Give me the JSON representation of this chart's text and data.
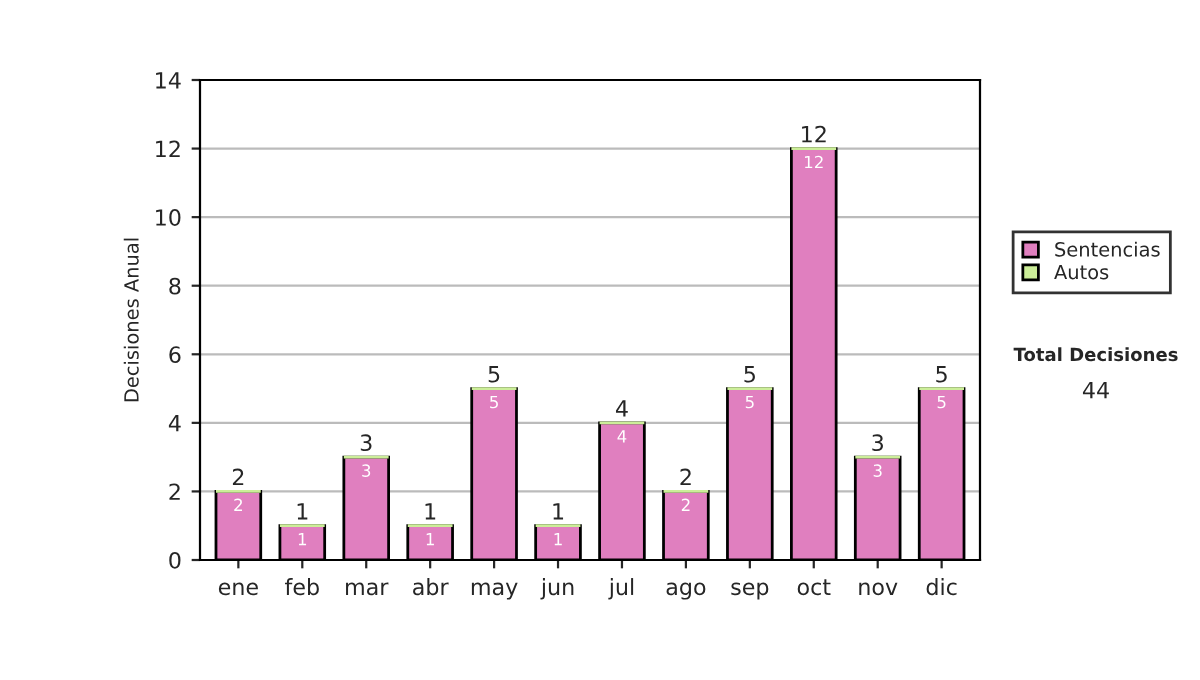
{
  "chart_data": {
    "type": "bar",
    "stacked": true,
    "ylabel": "Decisiones Anual",
    "categories": [
      "ene",
      "feb",
      "mar",
      "abr",
      "may",
      "jun",
      "jul",
      "ago",
      "sep",
      "oct",
      "nov",
      "dic"
    ],
    "series": [
      {
        "name": "Sentencias",
        "color": "#e07fbf",
        "values": [
          2,
          1,
          3,
          1,
          5,
          1,
          4,
          2,
          5,
          12,
          3,
          5
        ],
        "value_labels": [
          "2",
          "1",
          "3",
          "1",
          "5",
          "1",
          "4",
          "2",
          "5",
          "12",
          "3",
          "5"
        ]
      },
      {
        "name": "Autos",
        "color": "#ccee99",
        "values": [
          0,
          0,
          0,
          0,
          0,
          0,
          0,
          0,
          0,
          0,
          0,
          0
        ]
      }
    ],
    "totals": [
      "2",
      "1",
      "3",
      "1",
      "5",
      "1",
      "4",
      "2",
      "5",
      "12",
      "3",
      "5"
    ],
    "ylim": [
      0,
      14
    ],
    "yticks": [
      0,
      2,
      4,
      6,
      8,
      10,
      12,
      14
    ],
    "grid": "y",
    "legend": "right",
    "annotations": [
      "Total Decisiones",
      "44"
    ]
  }
}
